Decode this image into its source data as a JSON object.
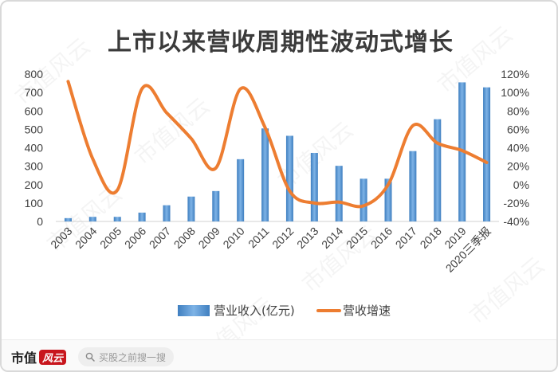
{
  "page": {
    "title": "上市以来营收周期性波动式增长",
    "brand_text": "市值",
    "brand_seal_text": "风云",
    "watermark_text": "市值风云",
    "search_placeholder": "买股之前搜一搜",
    "search_icon": "search-icon"
  },
  "chart_data": {
    "type": "bar+line",
    "title": "上市以来营收周期性波动式增长",
    "categories": [
      "2003",
      "2004",
      "2005",
      "2006",
      "2007",
      "2008",
      "2009",
      "2010",
      "2011",
      "2012",
      "2013",
      "2014",
      "2015",
      "2016",
      "2017",
      "2018",
      "2019",
      "2020三季报"
    ],
    "series": [
      {
        "name": "营业收入(亿元)",
        "type": "bar",
        "axis": "left",
        "color": "#5b9bd5",
        "values": [
          18,
          25,
          25,
          48,
          88,
          135,
          165,
          338,
          505,
          465,
          372,
          302,
          232,
          232,
          382,
          555,
          755,
          728
        ]
      },
      {
        "name": "营收增速",
        "type": "line",
        "axis": "right",
        "color": "#ed7d31",
        "values": [
          112,
          28,
          -6,
          104,
          78,
          50,
          18,
          104,
          62,
          -7,
          -20,
          -19,
          -23,
          0,
          64,
          45,
          37,
          24
        ]
      }
    ],
    "y_left": {
      "min": 0,
      "max": 800,
      "step": 100,
      "ticks": [
        "0",
        "100",
        "200",
        "300",
        "400",
        "500",
        "600",
        "700",
        "800"
      ]
    },
    "y_right": {
      "min": -40,
      "max": 120,
      "step": 20,
      "ticks": [
        "-40%",
        "-20%",
        "0%",
        "20%",
        "40%",
        "60%",
        "80%",
        "100%",
        "120%"
      ]
    },
    "grid": false,
    "legend_position": "bottom"
  }
}
